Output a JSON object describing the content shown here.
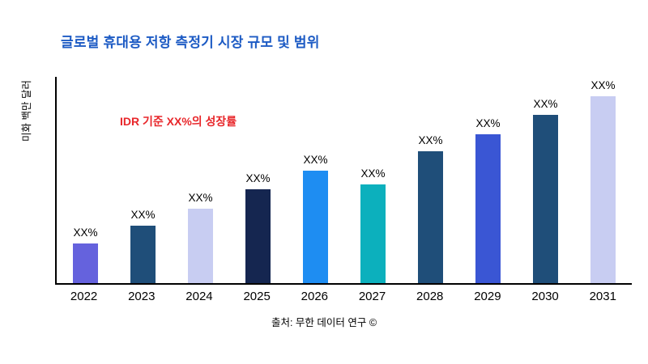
{
  "title": {
    "text": "글로벌 휴대용 저항 측정기 시장 규모 및 범위",
    "color": "#1d5bc4"
  },
  "annotation": {
    "text": "IDR 기준 XX%의 성장률",
    "color": "#e8262a"
  },
  "y_axis_label": "미화 백만 달러",
  "source": "출처: 무한 데이터 연구 ©",
  "chart_data": {
    "type": "bar",
    "title": "글로벌 휴대용 저항 측정기 시장 규모 및 범위",
    "xlabel": "",
    "ylabel": "미화 백만 달러",
    "categories": [
      "2022",
      "2023",
      "2024",
      "2025",
      "2026",
      "2027",
      "2028",
      "2029",
      "2030",
      "2031"
    ],
    "values": [
      49,
      71,
      92,
      116,
      139,
      122,
      163,
      184,
      208,
      231
    ],
    "value_unit": "relative-pixels (no numeric axis shown)",
    "bar_labels": [
      "XX%",
      "XX%",
      "XX%",
      "XX%",
      "XX%",
      "XX%",
      "XX%",
      "XX%",
      "XX%",
      "XX%"
    ],
    "bar_colors": [
      "#6562dd",
      "#1f4e79",
      "#c8cdf2",
      "#152650",
      "#1e8df2",
      "#0cb0bd",
      "#1f4e79",
      "#3a56d4",
      "#1f4e79",
      "#c8cdf2"
    ],
    "ylim": [
      0,
      257
    ],
    "grid": false,
    "legend": "none",
    "annotations": [
      "IDR 기준 XX%의 성장률"
    ]
  }
}
